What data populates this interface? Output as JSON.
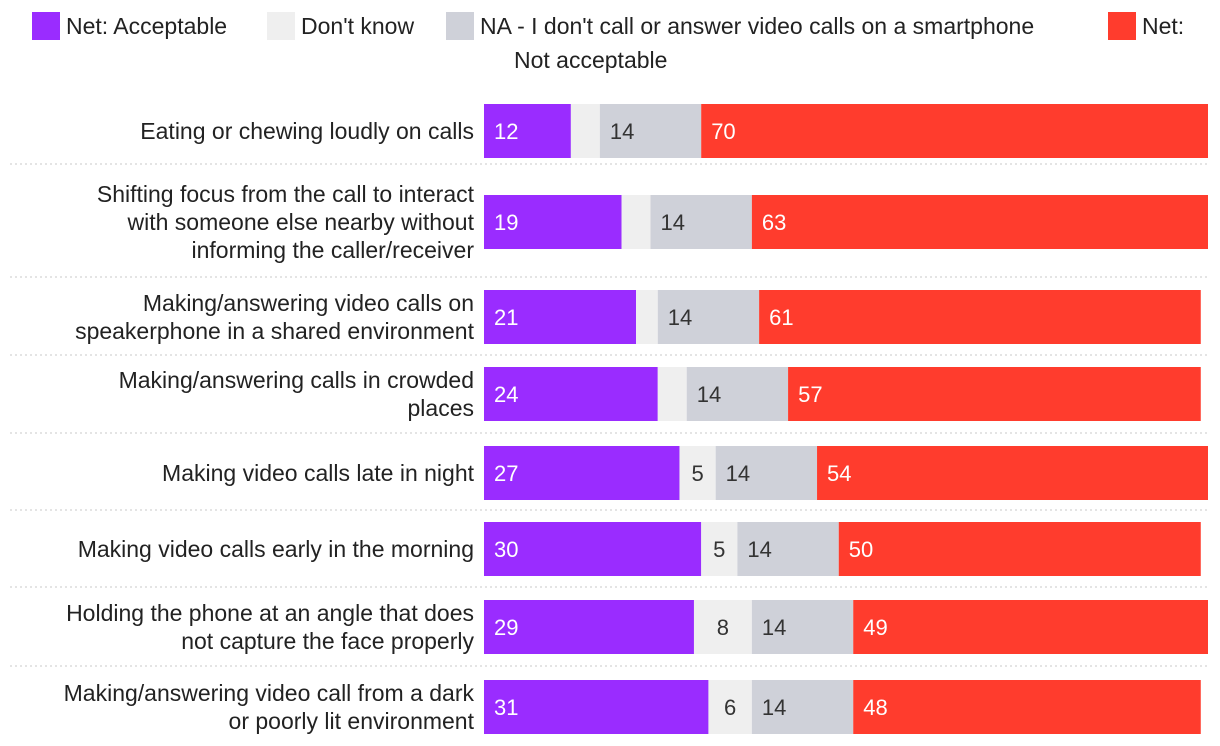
{
  "chart_data": {
    "type": "bar",
    "orientation": "horizontal",
    "stacked": true,
    "xlim": [
      0,
      100
    ],
    "categories": [
      [
        "Eating or chewing loudly on calls"
      ],
      [
        "Shifting focus from the call to interact",
        "with someone else nearby without",
        "informing the caller/receiver"
      ],
      [
        "Making/answering video calls on",
        "speakerphone in a shared environment"
      ],
      [
        "Making/answering calls in crowded",
        "places"
      ],
      [
        "Making video calls late in night"
      ],
      [
        "Making video calls early in the morning"
      ],
      [
        "Holding the phone at an angle that does",
        "not capture the face properly"
      ],
      [
        "Making/answering video call from a dark",
        "or poorly lit environment"
      ]
    ],
    "series": [
      {
        "name": "Net: Acceptable",
        "color": "#9a2cff",
        "label_color": "#ffffff",
        "values": [
          12,
          19,
          21,
          24,
          27,
          30,
          29,
          31
        ],
        "labels": [
          "12",
          "19",
          "21",
          "24",
          "27",
          "30",
          "29",
          "31"
        ]
      },
      {
        "name": "Don't know",
        "color": "#efefef",
        "label_color": "#333333",
        "values": [
          4,
          4,
          3,
          4,
          5,
          5,
          8,
          6
        ],
        "labels": [
          "",
          "",
          "",
          "",
          "5",
          "5",
          "8",
          "6"
        ]
      },
      {
        "name": "NA - I don't call or answer video calls on a smartphone",
        "color": "#cfd1d9",
        "label_color": "#333333",
        "values": [
          14,
          14,
          14,
          14,
          14,
          14,
          14,
          14
        ],
        "labels": [
          "14",
          "14",
          "14",
          "14",
          "14",
          "14",
          "14",
          "14"
        ]
      },
      {
        "name": "Net: Not acceptable",
        "color": "#ff3c2d",
        "label_color": "#ffffff",
        "values": [
          70,
          63,
          61,
          57,
          54,
          50,
          49,
          48
        ],
        "labels": [
          "70",
          "63",
          "61",
          "57",
          "54",
          "50",
          "49",
          "48"
        ]
      }
    ]
  },
  "legend": {
    "acceptable": "Net: Acceptable",
    "dont_know": "Don't know",
    "na": "NA - I don't call or answer video calls on a smartphone",
    "not_acceptable_line1": "Net:",
    "not_acceptable_line2": "Not acceptable"
  }
}
